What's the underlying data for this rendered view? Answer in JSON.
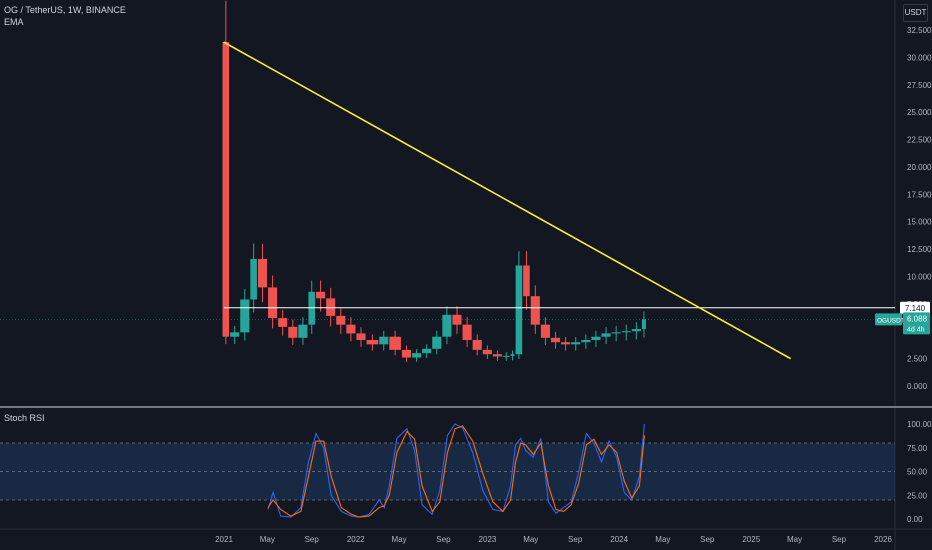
{
  "header": {
    "symbol_line": "OG / TetherUS, 1W, BINANCE",
    "indicator": "EMA",
    "currency_button": "USDT"
  },
  "price_axis_labels": [
    "32.500",
    "30.000",
    "27.500",
    "25.000",
    "22.500",
    "20.000",
    "17.500",
    "15.000",
    "12.500",
    "10.000",
    "7.500",
    "5.000",
    "2.500",
    "0.000"
  ],
  "price_tags": {
    "resistance": "7.140",
    "symbol": "OGUSDT",
    "price": "6.088",
    "countdown": "4d 4h"
  },
  "rsi_panel": {
    "title": "Stoch RSI",
    "axis_labels": [
      "100.00",
      "75.00",
      "50.00",
      "25.00",
      "0.00"
    ]
  },
  "time_axis_labels": [
    "2021",
    "May",
    "Sep",
    "2022",
    "May",
    "Sep",
    "2023",
    "May",
    "Sep",
    "2024",
    "May",
    "Sep",
    "2025",
    "May",
    "Sep",
    "2026"
  ],
  "colors": {
    "background": "#131722",
    "up": "#26a69a",
    "down": "#ef5350",
    "trendline": "#ffeb3b",
    "resistance": "#ffffff",
    "rsi_k": "#2962ff",
    "rsi_d": "#ff6d00",
    "rsi_band": "#1e3a5f"
  },
  "chart_data": [
    {
      "type": "candlestick",
      "title": "OG / TetherUS, 1W, BINANCE",
      "ylim": [
        0,
        32.5
      ],
      "horizontal_line": 7.14,
      "last_price": 6.088,
      "trendline": [
        [
          "2020-12-31",
          31.4
        ],
        [
          "2025-04-20",
          2.5
        ]
      ],
      "series": [
        {
          "name": "OGUSDT",
          "points": [
            [
              "2020-12-28",
              31.4,
              4.5
            ],
            [
              "2021-01-18",
              4.5,
              4.9
            ],
            [
              "2021-02-15",
              4.9,
              7.9
            ],
            [
              "2021-03-15",
              7.9,
              11.6
            ],
            [
              "2021-04-05",
              11.6,
              9.0
            ],
            [
              "2021-05-03",
              9.0,
              6.2
            ],
            [
              "2021-05-31",
              6.2,
              5.4
            ],
            [
              "2021-06-28",
              5.4,
              4.4
            ],
            [
              "2021-07-26",
              4.4,
              5.6
            ],
            [
              "2021-08-23",
              5.6,
              8.6
            ],
            [
              "2021-09-13",
              8.6,
              8.0
            ],
            [
              "2021-10-11",
              8.0,
              6.4
            ],
            [
              "2021-11-08",
              6.4,
              5.6
            ],
            [
              "2021-12-06",
              5.6,
              4.8
            ],
            [
              "2022-01-03",
              4.8,
              4.2
            ],
            [
              "2022-01-31",
              4.2,
              3.8
            ],
            [
              "2022-03-07",
              3.8,
              4.5
            ],
            [
              "2022-04-04",
              4.5,
              3.3
            ],
            [
              "2022-05-09",
              3.3,
              2.6
            ],
            [
              "2022-06-06",
              2.6,
              3.0
            ],
            [
              "2022-07-04",
              3.0,
              3.4
            ],
            [
              "2022-08-01",
              3.4,
              4.5
            ],
            [
              "2022-08-29",
              4.5,
              6.5
            ],
            [
              "2022-09-26",
              6.5,
              5.6
            ],
            [
              "2022-10-24",
              5.6,
              4.2
            ],
            [
              "2022-11-21",
              4.2,
              3.3
            ],
            [
              "2022-12-19",
              3.3,
              2.9
            ],
            [
              "2023-01-16",
              2.9,
              2.7
            ],
            [
              "2023-02-13",
              2.7,
              2.75
            ],
            [
              "2023-03-06",
              2.75,
              2.9
            ],
            [
              "2023-03-20",
              2.9,
              11.0
            ],
            [
              "2023-04-10",
              11.0,
              8.2
            ],
            [
              "2023-05-01",
              8.2,
              5.6
            ],
            [
              "2023-05-29",
              5.6,
              4.4
            ],
            [
              "2023-06-26",
              4.4,
              4.0
            ],
            [
              "2023-07-24",
              4.0,
              3.8
            ],
            [
              "2023-08-21",
              3.8,
              4.0
            ],
            [
              "2023-09-18",
              4.0,
              4.2
            ],
            [
              "2023-10-16",
              4.2,
              4.5
            ],
            [
              "2023-11-13",
              4.5,
              4.8
            ],
            [
              "2023-12-11",
              4.8,
              4.9
            ],
            [
              "2024-01-08",
              4.9,
              5.0
            ],
            [
              "2024-02-05",
              5.0,
              5.2
            ],
            [
              "2024-03-04",
              5.2,
              6.088
            ]
          ]
        }
      ]
    },
    {
      "type": "line",
      "title": "Stoch RSI",
      "ylim": [
        0,
        100
      ],
      "bands": [
        20,
        50,
        80
      ],
      "x": [
        "2021-05-03",
        "2021-05-17",
        "2021-06-07",
        "2021-07-05",
        "2021-08-02",
        "2021-08-23",
        "2021-09-13",
        "2021-10-04",
        "2021-10-25",
        "2021-11-22",
        "2021-12-20",
        "2022-01-10",
        "2022-02-07",
        "2022-03-07",
        "2022-03-21",
        "2022-04-04",
        "2022-04-25",
        "2022-05-23",
        "2022-06-13",
        "2022-07-04",
        "2022-08-01",
        "2022-08-22",
        "2022-09-12",
        "2022-10-03",
        "2022-10-24",
        "2022-11-21",
        "2022-12-19",
        "2023-01-16",
        "2023-02-13",
        "2023-03-06",
        "2023-03-20",
        "2023-04-03",
        "2023-04-17",
        "2023-05-08",
        "2023-05-29",
        "2023-06-19",
        "2023-07-10",
        "2023-07-31",
        "2023-08-21",
        "2023-09-11",
        "2023-10-02",
        "2023-10-23",
        "2023-11-13",
        "2023-12-04",
        "2023-12-25",
        "2024-01-15",
        "2024-02-05",
        "2024-02-26",
        "2024-03-11"
      ],
      "series": [
        {
          "name": "K",
          "values": [
            10,
            28,
            3,
            2,
            12,
            60,
            90,
            75,
            25,
            8,
            3,
            2,
            5,
            20,
            12,
            35,
            85,
            95,
            72,
            15,
            5,
            30,
            88,
            100,
            96,
            70,
            30,
            10,
            8,
            35,
            78,
            85,
            72,
            65,
            85,
            18,
            6,
            12,
            18,
            50,
            90,
            80,
            60,
            82,
            65,
            28,
            20,
            45,
            100
          ]
        },
        {
          "name": "D",
          "values": [
            12,
            20,
            10,
            3,
            8,
            45,
            82,
            82,
            45,
            12,
            5,
            2,
            3,
            12,
            14,
            25,
            70,
            92,
            84,
            35,
            8,
            18,
            70,
            95,
            98,
            82,
            48,
            18,
            8,
            20,
            60,
            80,
            78,
            68,
            80,
            35,
            10,
            8,
            15,
            38,
            78,
            84,
            68,
            78,
            70,
            40,
            22,
            35,
            88
          ]
        }
      ]
    }
  ]
}
